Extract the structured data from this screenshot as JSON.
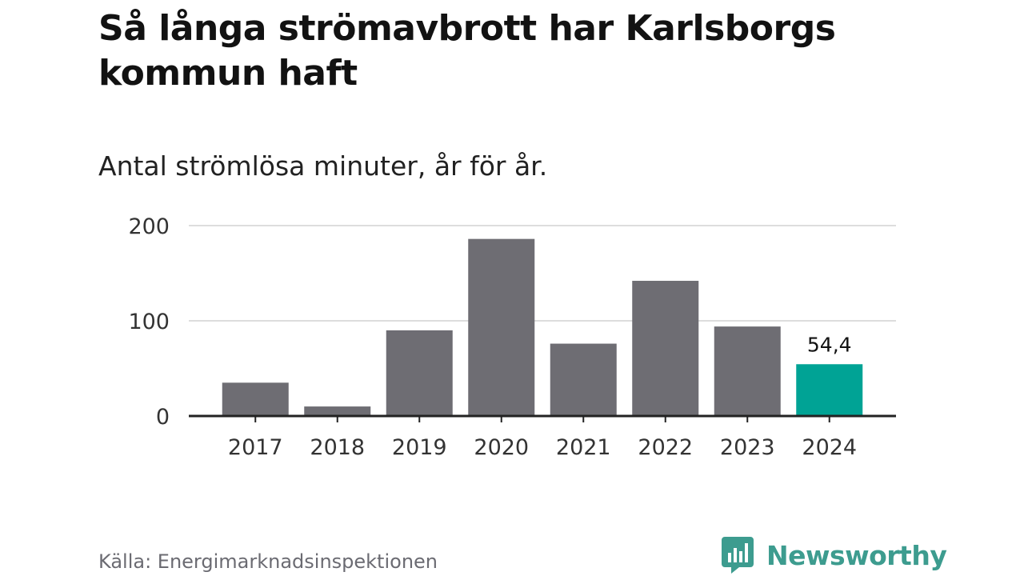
{
  "title": "Så långa strömavbrott har Karlsborgs kommun haft",
  "subtitle": "Antal strömlösa minuter, år för år.",
  "source": "Källa: Energimarknadsinspektionen",
  "brand": {
    "name": "Newsworthy",
    "icon": "newsworthy-logo-icon",
    "color": "#3d9c8f"
  },
  "colors": {
    "bar": "#6e6d73",
    "highlight": "#00a395",
    "grid": "#dddddd",
    "axis": "#222222",
    "tick_text": "#333333"
  },
  "chart_data": {
    "type": "bar",
    "title": "Så långa strömavbrott har Karlsborgs kommun haft",
    "subtitle": "Antal strömlösa minuter, år för år.",
    "xlabel": "",
    "ylabel": "",
    "categories": [
      "2017",
      "2018",
      "2019",
      "2020",
      "2021",
      "2022",
      "2023",
      "2024"
    ],
    "values": [
      35,
      10,
      90,
      186,
      76,
      142,
      94,
      54.4
    ],
    "highlight_index": 7,
    "data_labels": [
      {
        "index": 7,
        "text": "54,4"
      }
    ],
    "ylim": [
      0,
      200
    ],
    "yticks": [
      0,
      100,
      200
    ],
    "ytick_labels": [
      "0",
      "100",
      "200"
    ],
    "grid": true,
    "legend": "none"
  }
}
